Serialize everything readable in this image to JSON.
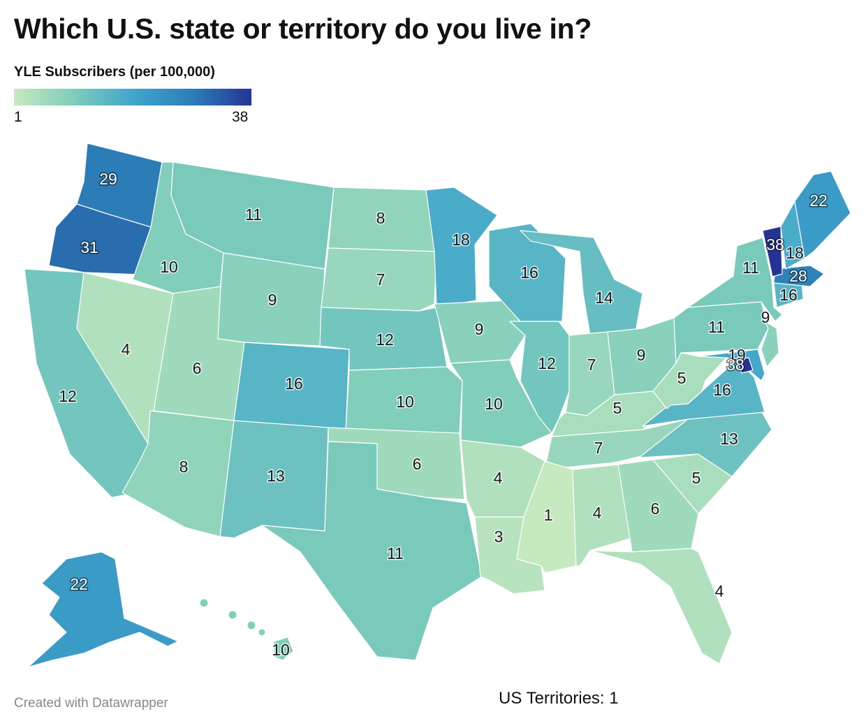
{
  "title": "Which U.S. state or territory do you live in?",
  "legend": {
    "title": "YLE Subscribers (per 100,000)",
    "min_label": "1",
    "max_label": "38",
    "min": 1,
    "max": 38,
    "colors": [
      "#c7e9c0",
      "#7fcdbb",
      "#41a6cc",
      "#2c7fb8",
      "#253494"
    ]
  },
  "footer": "Created with Datawrapper",
  "territories_note": "US Territories: 1",
  "chart_data": {
    "type": "choropleth",
    "unit": "YLE Subscribers (per 100,000)",
    "states": [
      {
        "id": "WA",
        "value": 29
      },
      {
        "id": "OR",
        "value": 31
      },
      {
        "id": "CA",
        "value": 12
      },
      {
        "id": "NV",
        "value": 4
      },
      {
        "id": "ID",
        "value": 10
      },
      {
        "id": "MT",
        "value": 11
      },
      {
        "id": "WY",
        "value": 9
      },
      {
        "id": "UT",
        "value": 6
      },
      {
        "id": "AZ",
        "value": 8
      },
      {
        "id": "CO",
        "value": 16
      },
      {
        "id": "NM",
        "value": 13
      },
      {
        "id": "ND",
        "value": 8
      },
      {
        "id": "SD",
        "value": 7
      },
      {
        "id": "NE",
        "value": 12
      },
      {
        "id": "KS",
        "value": 10
      },
      {
        "id": "OK",
        "value": 6
      },
      {
        "id": "TX",
        "value": 11
      },
      {
        "id": "MN",
        "value": 18
      },
      {
        "id": "IA",
        "value": 9
      },
      {
        "id": "MO",
        "value": 10
      },
      {
        "id": "AR",
        "value": 4
      },
      {
        "id": "LA",
        "value": 3
      },
      {
        "id": "WI",
        "value": 16
      },
      {
        "id": "IL",
        "value": 12
      },
      {
        "id": "MI",
        "value": 14
      },
      {
        "id": "IN",
        "value": 7
      },
      {
        "id": "OH",
        "value": 9
      },
      {
        "id": "KY",
        "value": 5
      },
      {
        "id": "TN",
        "value": 7
      },
      {
        "id": "MS",
        "value": 1
      },
      {
        "id": "AL",
        "value": 4
      },
      {
        "id": "GA",
        "value": 6
      },
      {
        "id": "FL",
        "value": 4
      },
      {
        "id": "SC",
        "value": 5
      },
      {
        "id": "NC",
        "value": 13
      },
      {
        "id": "VA",
        "value": 16
      },
      {
        "id": "WV",
        "value": 5
      },
      {
        "id": "PA",
        "value": 11
      },
      {
        "id": "NY",
        "value": 11
      },
      {
        "id": "NJ",
        "value": 9
      },
      {
        "id": "MD",
        "value": 19
      },
      {
        "id": "DC",
        "value": 38
      },
      {
        "id": "CT",
        "value": 16
      },
      {
        "id": "MA",
        "value": 28
      },
      {
        "id": "VT",
        "value": 38
      },
      {
        "id": "NH",
        "value": 18
      },
      {
        "id": "ME",
        "value": 22
      },
      {
        "id": "AK",
        "value": 22
      },
      {
        "id": "HI",
        "value": 10
      }
    ]
  }
}
